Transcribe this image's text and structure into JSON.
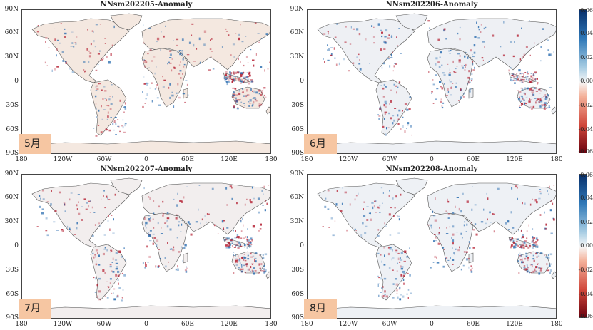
{
  "panels": [
    {
      "title": "NNsm202205-Anomaly",
      "month": "5月"
    },
    {
      "title": "NNsm202206-Anomaly",
      "month": "6月"
    },
    {
      "title": "NNsm202207-Anomaly",
      "month": "7月"
    },
    {
      "title": "NNsm202208-Anomaly",
      "month": "8月"
    }
  ],
  "lat_labels": [
    "90N",
    "60N",
    "30N",
    "0",
    "30S",
    "60S",
    "90S"
  ],
  "lon_labels": [
    "180",
    "120W",
    "60W",
    "0",
    "60E",
    "120E",
    "180"
  ],
  "colorbar": {
    "ticks": [
      "0.06",
      "0.04",
      "0.02",
      "0.00",
      "-0.02",
      "-0.04",
      "-0.06"
    ],
    "range": [
      -0.06,
      0.06
    ],
    "colors": {
      "high": "#08306b",
      "mid": "#f7f7f7",
      "low": "#67000d"
    }
  },
  "colors": {
    "land_line": "#555555",
    "month_box": "#f6c6a2",
    "positive": "#2166ac",
    "negative": "#b2182b"
  }
}
